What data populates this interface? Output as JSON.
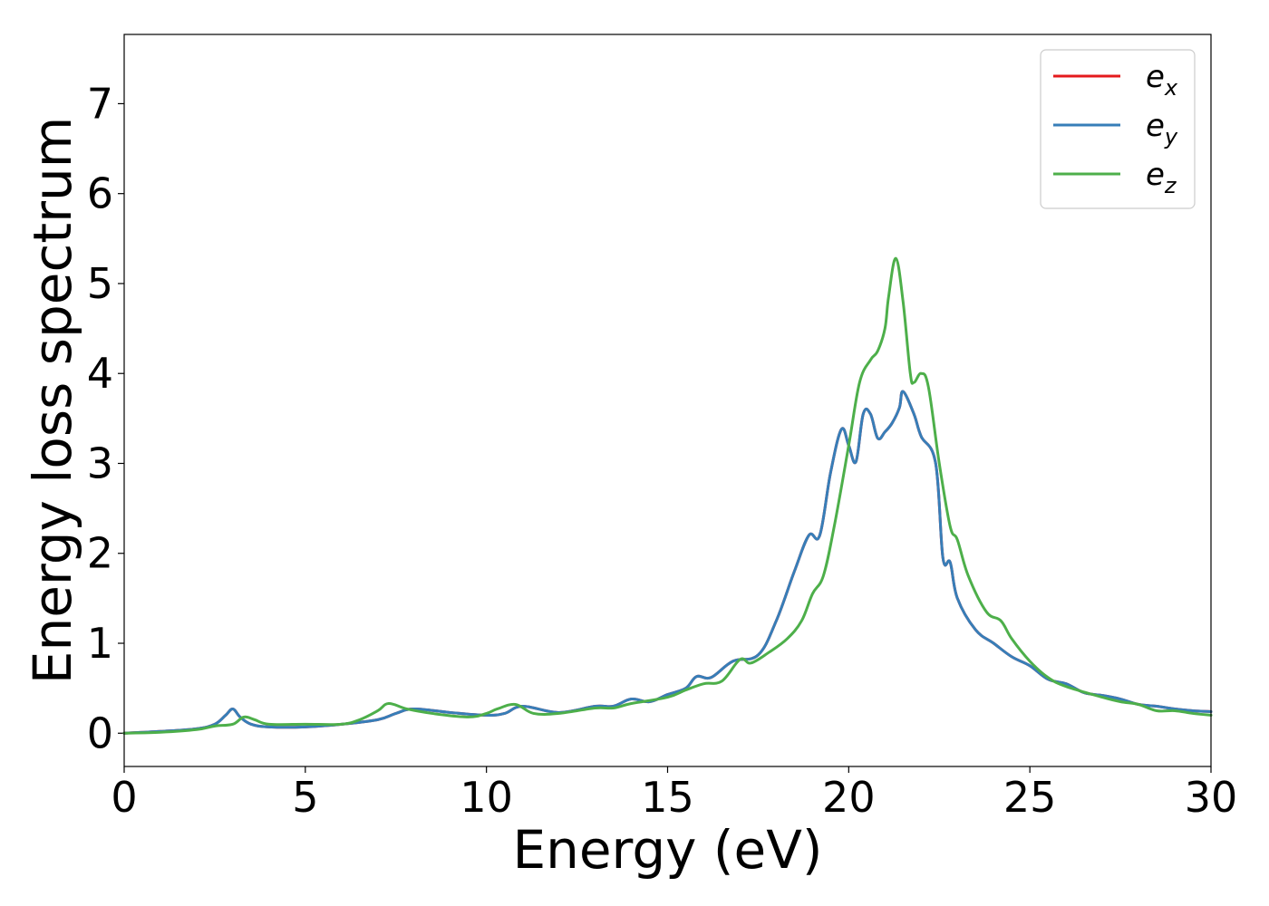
{
  "chart_data": {
    "type": "line",
    "title": "",
    "xlabel": "Energy (eV)",
    "ylabel": "Energy loss spectrum",
    "xlim": [
      0,
      30
    ],
    "ylim": [
      -0.37,
      7.77
    ],
    "xticks": [
      0,
      5,
      10,
      15,
      20,
      25,
      30
    ],
    "yticks": [
      0,
      1,
      2,
      3,
      4,
      5,
      6,
      7
    ],
    "grid": false,
    "legend_position": "top-right",
    "series": [
      {
        "name": "e_x",
        "legend_base": "e",
        "legend_sub": "x",
        "color": "#e41a1c",
        "x": [
          0,
          1,
          2,
          2.5,
          2.8,
          3.0,
          3.2,
          3.5,
          4,
          5,
          6,
          7,
          7.5,
          8,
          9,
          10,
          10.5,
          11,
          12,
          13,
          13.5,
          14,
          14.5,
          15,
          15.5,
          15.8,
          16.2,
          16.8,
          17.5,
          18.0,
          18.5,
          18.9,
          19.2,
          19.5,
          19.8,
          20.0,
          20.2,
          20.4,
          20.6,
          20.8,
          21.0,
          21.2,
          21.4,
          21.5,
          21.8,
          22.0,
          22.4,
          22.6,
          22.8,
          23.0,
          23.5,
          24.0,
          24.5,
          25.0,
          25.5,
          26.0,
          26.5,
          27.0,
          27.5,
          28.0,
          28.5,
          29.0,
          29.5,
          30.0
        ],
        "y": [
          0.0,
          0.02,
          0.05,
          0.1,
          0.2,
          0.27,
          0.18,
          0.1,
          0.07,
          0.07,
          0.1,
          0.15,
          0.22,
          0.27,
          0.23,
          0.2,
          0.22,
          0.3,
          0.23,
          0.3,
          0.3,
          0.38,
          0.35,
          0.43,
          0.5,
          0.63,
          0.62,
          0.8,
          0.87,
          1.25,
          1.8,
          2.2,
          2.2,
          2.9,
          3.38,
          3.2,
          3.02,
          3.55,
          3.55,
          3.28,
          3.35,
          3.45,
          3.62,
          3.8,
          3.55,
          3.3,
          3.0,
          1.95,
          1.9,
          1.5,
          1.15,
          1.0,
          0.85,
          0.75,
          0.6,
          0.55,
          0.45,
          0.42,
          0.38,
          0.32,
          0.3,
          0.27,
          0.25,
          0.24
        ]
      },
      {
        "name": "e_y",
        "legend_base": "e",
        "legend_sub": "y",
        "color": "#377eb8",
        "x": [
          0,
          1,
          2,
          2.5,
          2.8,
          3.0,
          3.2,
          3.5,
          4,
          5,
          6,
          7,
          7.5,
          8,
          9,
          10,
          10.5,
          11,
          12,
          13,
          13.5,
          14,
          14.5,
          15,
          15.5,
          15.8,
          16.2,
          16.8,
          17.5,
          18.0,
          18.5,
          18.9,
          19.2,
          19.5,
          19.8,
          20.0,
          20.2,
          20.4,
          20.6,
          20.8,
          21.0,
          21.2,
          21.4,
          21.5,
          21.8,
          22.0,
          22.4,
          22.6,
          22.8,
          23.0,
          23.5,
          24.0,
          24.5,
          25.0,
          25.5,
          26.0,
          26.5,
          27.0,
          27.5,
          28.0,
          28.5,
          29.0,
          29.5,
          30.0
        ],
        "y": [
          0.0,
          0.02,
          0.05,
          0.1,
          0.2,
          0.27,
          0.18,
          0.1,
          0.07,
          0.07,
          0.1,
          0.15,
          0.22,
          0.27,
          0.23,
          0.2,
          0.22,
          0.3,
          0.23,
          0.3,
          0.3,
          0.38,
          0.35,
          0.43,
          0.5,
          0.63,
          0.62,
          0.8,
          0.87,
          1.25,
          1.8,
          2.2,
          2.2,
          2.9,
          3.38,
          3.2,
          3.02,
          3.55,
          3.55,
          3.28,
          3.35,
          3.45,
          3.62,
          3.8,
          3.55,
          3.3,
          3.0,
          1.95,
          1.9,
          1.5,
          1.15,
          1.0,
          0.85,
          0.75,
          0.6,
          0.55,
          0.45,
          0.42,
          0.38,
          0.32,
          0.3,
          0.27,
          0.25,
          0.24
        ]
      },
      {
        "name": "e_z",
        "legend_base": "e",
        "legend_sub": "z",
        "color": "#4daf4a",
        "x": [
          0,
          1,
          2,
          2.5,
          3.0,
          3.3,
          3.6,
          4,
          5,
          6,
          6.5,
          7,
          7.3,
          7.8,
          8.5,
          9.5,
          10,
          10.3,
          10.8,
          11.3,
          12,
          13,
          13.5,
          14,
          15,
          15.5,
          16,
          16.5,
          17.0,
          17.3,
          17.8,
          18.3,
          18.7,
          19.0,
          19.3,
          19.6,
          20.0,
          20.3,
          20.6,
          20.8,
          21.0,
          21.1,
          21.3,
          21.5,
          21.7,
          21.8,
          22.0,
          22.2,
          22.5,
          22.8,
          23.0,
          23.3,
          23.8,
          24.2,
          24.5,
          25.0,
          25.5,
          26.0,
          27.0,
          27.5,
          28.0,
          28.5,
          29.0,
          29.5,
          30.0
        ],
        "y": [
          0.0,
          0.01,
          0.04,
          0.08,
          0.1,
          0.18,
          0.15,
          0.1,
          0.1,
          0.1,
          0.15,
          0.25,
          0.33,
          0.27,
          0.22,
          0.18,
          0.22,
          0.27,
          0.32,
          0.22,
          0.22,
          0.28,
          0.28,
          0.33,
          0.4,
          0.48,
          0.55,
          0.58,
          0.82,
          0.78,
          0.9,
          1.05,
          1.25,
          1.55,
          1.75,
          2.3,
          3.2,
          3.9,
          4.15,
          4.25,
          4.5,
          4.85,
          5.28,
          4.8,
          4.0,
          3.9,
          4.0,
          3.85,
          3.0,
          2.3,
          2.15,
          1.75,
          1.35,
          1.25,
          1.05,
          0.8,
          0.62,
          0.52,
          0.4,
          0.35,
          0.32,
          0.25,
          0.25,
          0.22,
          0.2
        ]
      }
    ]
  }
}
